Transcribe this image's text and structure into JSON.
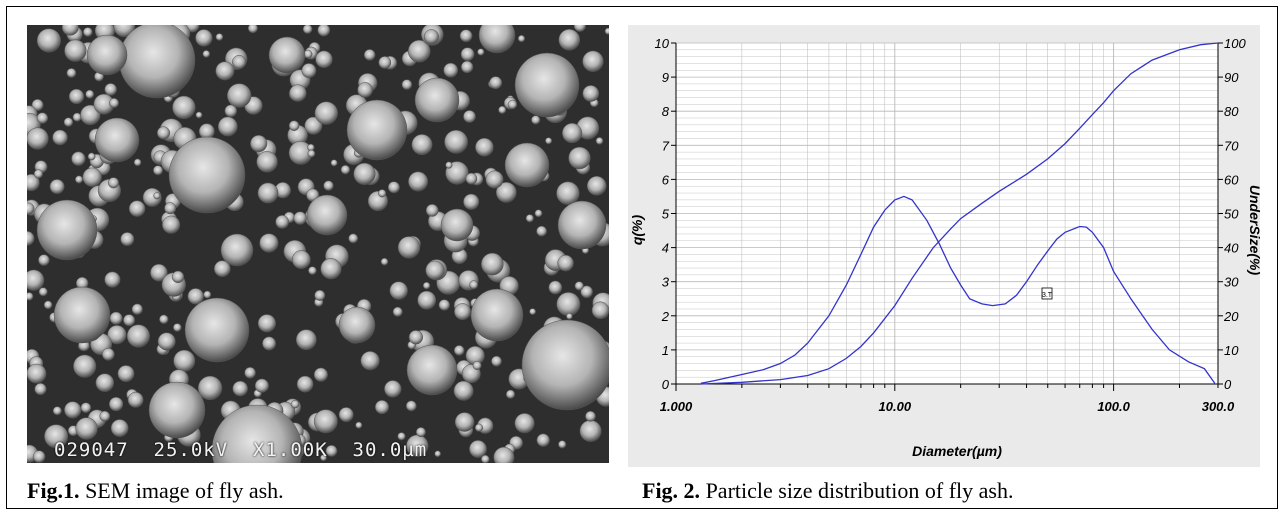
{
  "sem_image": {
    "banner": "029047  25.0kV  X1.00K  30.0µm"
  },
  "captions": {
    "fig1_label": "Fig.1.",
    "fig1_text": " SEM image of fly ash.",
    "fig2_label": "Fig. 2.",
    "fig2_text": " Particle size distribution of fly ash."
  },
  "colors": {
    "curve": "#3333cc",
    "chart_bg": "#eaeaea",
    "grid": "#b8b8b8"
  },
  "chart_data": {
    "type": "line",
    "xlabel": "Diameter(µm)",
    "ylabel_left": "q(%)",
    "ylabel_right": "UnderSize(%)",
    "x_scale": "log",
    "xlim": [
      1,
      300
    ],
    "ylim_left": [
      0,
      10
    ],
    "ylim_right": [
      0,
      100
    ],
    "x_tick_labels": [
      "1.000",
      "10.00",
      "100.0",
      "300.0"
    ],
    "x_tick_values": [
      1,
      10,
      100,
      300
    ],
    "y_left_ticks": [
      "0",
      "1",
      "2",
      "3",
      "4",
      "5",
      "6",
      "7",
      "8",
      "9",
      "10"
    ],
    "y_right_ticks": [
      "0",
      "10",
      "20",
      "30",
      "40",
      "50",
      "60",
      "70",
      "80",
      "90",
      "100"
    ],
    "grid": true,
    "series": [
      {
        "axis": "left",
        "x": [
          1.3,
          1.5,
          2,
          2.5,
          3,
          3.5,
          4,
          5,
          6,
          7,
          8,
          9,
          10,
          11,
          12,
          14,
          16,
          18,
          20,
          22,
          25,
          28,
          32,
          36,
          40,
          45,
          50,
          55,
          60,
          70,
          75,
          80,
          90,
          100,
          120,
          150,
          180,
          220,
          260,
          290
        ],
        "y": [
          0.02,
          0.1,
          0.28,
          0.42,
          0.6,
          0.85,
          1.2,
          2.0,
          2.9,
          3.8,
          4.6,
          5.1,
          5.4,
          5.5,
          5.4,
          4.8,
          4.1,
          3.4,
          2.9,
          2.5,
          2.35,
          2.3,
          2.35,
          2.6,
          3.0,
          3.5,
          3.9,
          4.25,
          4.45,
          4.62,
          4.6,
          4.45,
          4.0,
          3.3,
          2.5,
          1.6,
          1.0,
          0.65,
          0.45,
          0.02
        ]
      },
      {
        "axis": "right",
        "x": [
          1.3,
          2,
          3,
          4,
          5,
          6,
          7,
          8,
          10,
          12,
          15,
          18,
          20,
          25,
          30,
          40,
          50,
          60,
          70,
          80,
          90,
          100,
          120,
          150,
          200,
          250,
          300
        ],
        "y": [
          0,
          0.5,
          1.3,
          2.5,
          4.5,
          7.5,
          11,
          15,
          23,
          31,
          40,
          45.5,
          48.5,
          53,
          56.5,
          61.5,
          66,
          70.5,
          75,
          79,
          82.5,
          86,
          91,
          95,
          98,
          99.5,
          100
        ]
      }
    ],
    "annotation": "3.T"
  }
}
